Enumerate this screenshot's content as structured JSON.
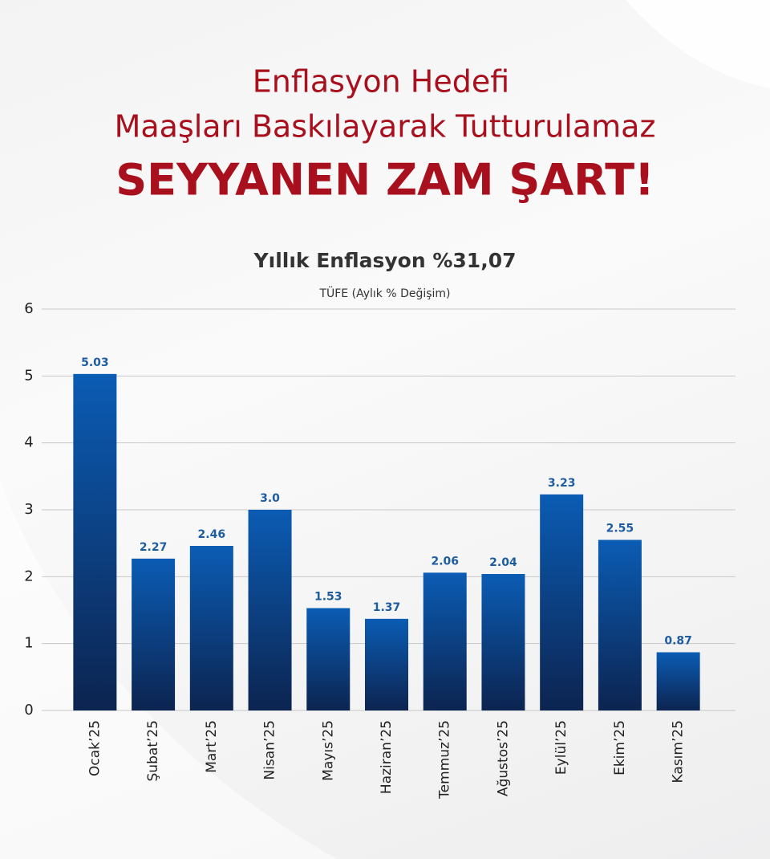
{
  "header": {
    "line1": "Enflasyon Hedefi",
    "line2": "Maaşları Baskılayarak Tutturulamaz",
    "slogan": "SEYYANEN ZAM ŞART!"
  },
  "chart_data": {
    "type": "bar",
    "title": "Yıllık Enflasyon %31,07",
    "subtitle": "TÜFE (Aylık % Değişim)",
    "categories": [
      "Ocak’25",
      "Şubat’25",
      "Mart’25",
      "Nisan’25",
      "Mayıs’25",
      "Haziran’25",
      "Temmuz’25",
      "Ağustos’25",
      "Eylül’25",
      "Ekim’25",
      "Kasım’25"
    ],
    "values": [
      5.03,
      2.27,
      2.46,
      3.0,
      1.53,
      1.37,
      2.06,
      2.04,
      3.23,
      2.55,
      0.87
    ],
    "value_labels": [
      "5.03",
      "2.27",
      "2.46",
      "3.0",
      "1.53",
      "1.37",
      "2.06",
      "2.04",
      "3.23",
      "2.55",
      "0.87"
    ],
    "color": "#0b5cb4",
    "ylim": [
      0,
      6
    ],
    "yticks": [
      0,
      1,
      2,
      3,
      4,
      5,
      6
    ],
    "grid": true
  }
}
